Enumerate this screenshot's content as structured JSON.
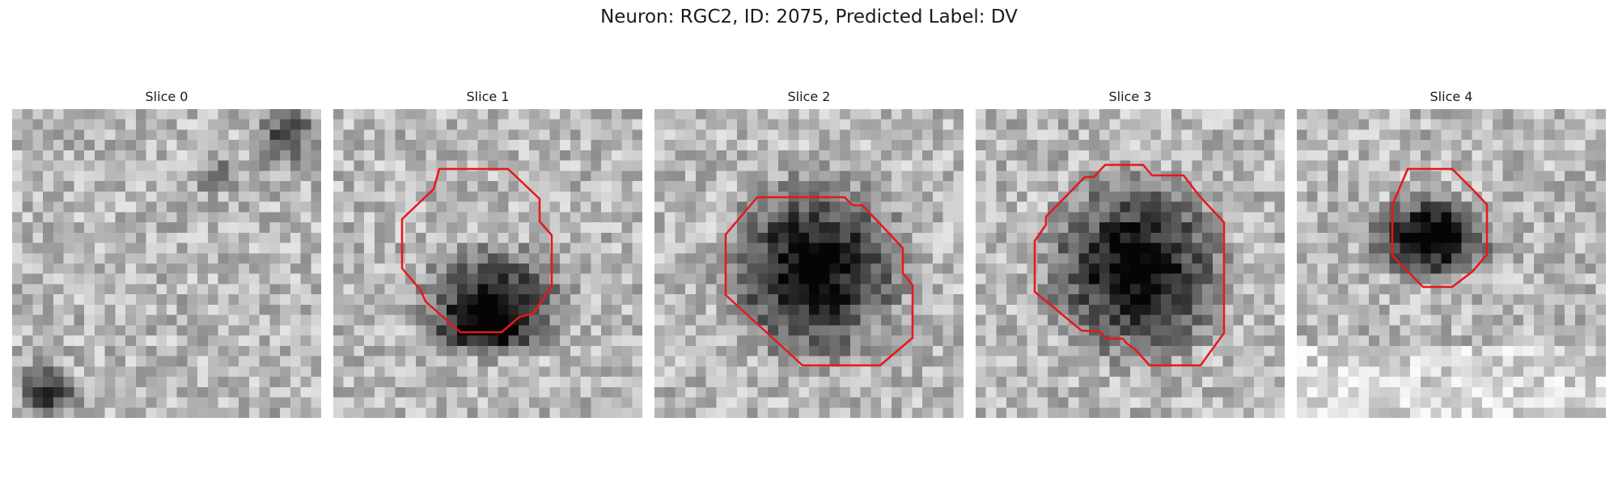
{
  "figure": {
    "title": "Neuron: RGC2, ID: 2075, Predicted Label: DV",
    "outline_color": "#e8171a"
  },
  "panels": [
    {
      "title": "Slice 0",
      "dark_blob": null,
      "has_outline": false
    },
    {
      "title": "Slice 1",
      "dark_blob": "crescent",
      "has_outline": true
    },
    {
      "title": "Slice 2",
      "dark_blob": "large",
      "has_outline": true
    },
    {
      "title": "Slice 3",
      "dark_blob": "large",
      "has_outline": true
    },
    {
      "title": "Slice 4",
      "dark_blob": "small",
      "has_outline": true
    }
  ]
}
